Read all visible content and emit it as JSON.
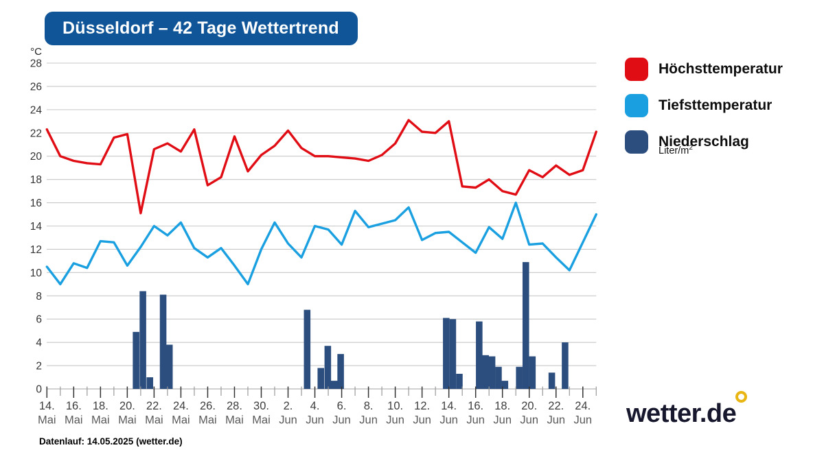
{
  "title": "Düsseldorf – 42 Tage Wettertrend",
  "footer": "Datenlauf: 14.05.2025 (wetter.de)",
  "logo": {
    "text": "wetter.de",
    "ring_color": "#e9b512"
  },
  "legend": {
    "items": [
      {
        "label": "Höchsttemperatur",
        "color": "#e00d15"
      },
      {
        "label": "Tiefsttemperatur",
        "color": "#1aa0e0"
      },
      {
        "label": "Niederschlag",
        "color": "#2c4e7e",
        "sub": "Liter/m²"
      }
    ]
  },
  "chart_data": {
    "type": "line+bar",
    "title": "Düsseldorf – 42 Tage Wettertrend",
    "y_unit_label": "°C",
    "ylim": [
      0,
      28
    ],
    "yticks": [
      0,
      2,
      4,
      6,
      8,
      10,
      12,
      14,
      16,
      18,
      20,
      22,
      24,
      26,
      28
    ],
    "grid": true,
    "n_points": 42,
    "x_tick_labels": [
      {
        "d": 0,
        "day": "14.",
        "month": "Mai"
      },
      {
        "d": 2,
        "day": "16.",
        "month": "Mai"
      },
      {
        "d": 4,
        "day": "18.",
        "month": "Mai"
      },
      {
        "d": 6,
        "day": "20.",
        "month": "Mai"
      },
      {
        "d": 8,
        "day": "22.",
        "month": "Mai"
      },
      {
        "d": 10,
        "day": "24.",
        "month": "Mai"
      },
      {
        "d": 12,
        "day": "26.",
        "month": "Mai"
      },
      {
        "d": 14,
        "day": "28.",
        "month": "Mai"
      },
      {
        "d": 16,
        "day": "30.",
        "month": "Mai"
      },
      {
        "d": 18,
        "day": "2.",
        "month": "Jun"
      },
      {
        "d": 20,
        "day": "4.",
        "month": "Jun"
      },
      {
        "d": 22,
        "day": "6.",
        "month": "Jun"
      },
      {
        "d": 24,
        "day": "8.",
        "month": "Jun"
      },
      {
        "d": 26,
        "day": "10.",
        "month": "Jun"
      },
      {
        "d": 28,
        "day": "12.",
        "month": "Jun"
      },
      {
        "d": 30,
        "day": "14.",
        "month": "Jun"
      },
      {
        "d": 32,
        "day": "16.",
        "month": "Jun"
      },
      {
        "d": 34,
        "day": "18.",
        "month": "Jun"
      },
      {
        "d": 36,
        "day": "20.",
        "month": "Jun"
      },
      {
        "d": 38,
        "day": "22.",
        "month": "Jun"
      },
      {
        "d": 40,
        "day": "24.",
        "month": "Jun"
      }
    ],
    "series": [
      {
        "name": "Höchsttemperatur",
        "type": "line",
        "color": "#e00d15",
        "values": [
          22.3,
          20.0,
          19.6,
          19.4,
          19.3,
          21.6,
          21.9,
          15.1,
          20.6,
          21.1,
          20.4,
          22.3,
          17.5,
          18.2,
          21.7,
          18.7,
          20.1,
          20.9,
          22.2,
          20.7,
          20.0,
          20.0,
          19.9,
          19.8,
          19.6,
          20.1,
          21.1,
          23.1,
          22.1,
          22.0,
          23.0,
          17.4,
          17.3,
          18.0,
          17.0,
          16.7,
          18.8,
          18.2,
          19.2,
          18.4,
          18.8,
          22.1
        ]
      },
      {
        "name": "Tiefsttemperatur",
        "type": "line",
        "color": "#1aa0e0",
        "values": [
          10.5,
          9.0,
          10.8,
          10.4,
          12.7,
          12.6,
          10.6,
          12.2,
          14.0,
          13.2,
          14.3,
          12.1,
          11.3,
          12.1,
          10.6,
          9.0,
          12.0,
          14.3,
          12.5,
          11.3,
          14.0,
          13.7,
          12.4,
          15.3,
          13.9,
          14.2,
          14.5,
          15.6,
          12.8,
          13.4,
          13.5,
          12.6,
          11.7,
          13.9,
          12.9,
          16.0,
          12.4,
          12.5,
          11.3,
          10.2,
          12.6,
          15.0
        ]
      }
    ],
    "precipitation": {
      "name": "Niederschlag",
      "type": "bar",
      "color": "#2c4e7e",
      "unit": "Liter/m²",
      "bar_width_days": 0.49,
      "bars": [
        {
          "d": 6.41,
          "v": 4.9
        },
        {
          "d": 6.92,
          "v": 8.4
        },
        {
          "d": 7.44,
          "v": 1.0
        },
        {
          "d": 8.43,
          "v": 8.1
        },
        {
          "d": 8.9,
          "v": 3.8
        },
        {
          "d": 19.18,
          "v": 6.8
        },
        {
          "d": 20.2,
          "v": 1.8
        },
        {
          "d": 20.72,
          "v": 3.7
        },
        {
          "d": 21.2,
          "v": 0.7
        },
        {
          "d": 21.68,
          "v": 3.0
        },
        {
          "d": 29.56,
          "v": 6.1
        },
        {
          "d": 30.05,
          "v": 6.0
        },
        {
          "d": 30.54,
          "v": 1.3
        },
        {
          "d": 32.02,
          "v": 5.8
        },
        {
          "d": 32.5,
          "v": 2.9
        },
        {
          "d": 32.98,
          "v": 2.8
        },
        {
          "d": 33.46,
          "v": 1.9
        },
        {
          "d": 33.94,
          "v": 0.7
        },
        {
          "d": 35.01,
          "v": 1.9
        },
        {
          "d": 35.5,
          "v": 10.9
        },
        {
          "d": 35.99,
          "v": 2.8
        },
        {
          "d": 37.44,
          "v": 1.4
        },
        {
          "d": 38.43,
          "v": 4.0
        }
      ]
    }
  }
}
